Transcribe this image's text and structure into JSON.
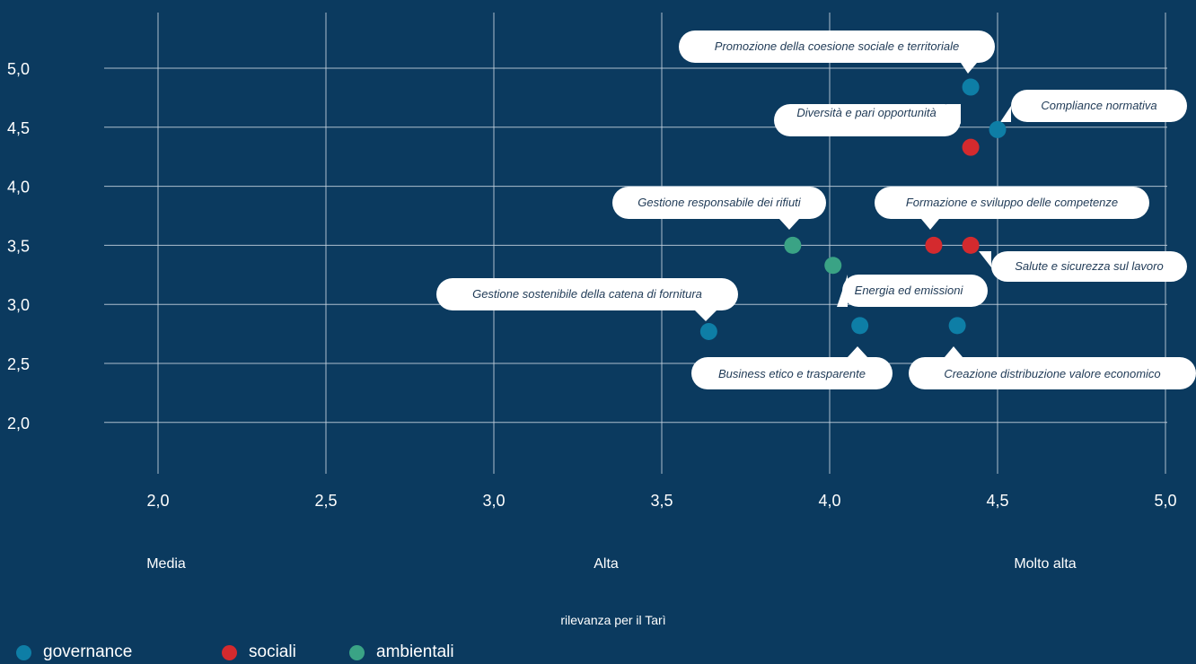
{
  "colors": {
    "background": "#0b3a5f",
    "grid": "#c9d6e2",
    "governance": "#0e7ea6",
    "sociali": "#d42a2e",
    "ambientali": "#3aa385",
    "callout_bg": "#ffffff",
    "callout_text": "#1f3a56"
  },
  "x_buckets": [
    "Media",
    "Alta",
    "Molto alta"
  ],
  "x_title": "rilevanza per il Tarì",
  "legend": [
    {
      "key": "governance",
      "label": "governance"
    },
    {
      "key": "sociali",
      "label": "sociali"
    },
    {
      "key": "ambientali",
      "label": "ambientali"
    }
  ],
  "chart_data": {
    "type": "scatter",
    "title": "",
    "xlabel": "rilevanza per il Tarì",
    "ylabel": "",
    "xlim": [
      1.85,
      5.0
    ],
    "ylim": [
      1.6,
      5.5
    ],
    "xticks": [
      2.0,
      2.5,
      3.0,
      3.5,
      4.0,
      4.5,
      5.0
    ],
    "xtick_labels": [
      "2,0",
      "2,5",
      "3,0",
      "3,5",
      "4,0",
      "4,5",
      "5,0"
    ],
    "yticks": [
      2.0,
      2.5,
      3.0,
      3.5,
      4.0,
      4.5,
      5.0
    ],
    "ytick_labels": [
      "2,0",
      "2,5",
      "3,0",
      "3,5",
      "4,0",
      "4,5",
      "5,0"
    ],
    "grid": true,
    "legend_position": "bottom-left",
    "series": [
      {
        "name": "governance",
        "points": [
          {
            "x": 4.42,
            "y": 4.84,
            "label": "Promozione della coesione sociale e territoriale"
          },
          {
            "x": 4.5,
            "y": 4.48,
            "label": "Compliance normativa"
          },
          {
            "x": 4.09,
            "y": 2.82,
            "label": "Business etico e trasparente"
          },
          {
            "x": 4.38,
            "y": 2.82,
            "label": "Creazione distribuzione valore economico"
          },
          {
            "x": 3.64,
            "y": 2.77,
            "label": "Gestione sostenibile della catena di fornitura"
          }
        ]
      },
      {
        "name": "sociali",
        "points": [
          {
            "x": 4.42,
            "y": 4.33,
            "label": "Diversità e pari opportunità"
          },
          {
            "x": 4.31,
            "y": 3.5,
            "label": "Formazione e sviluppo delle competenze"
          },
          {
            "x": 4.42,
            "y": 3.5,
            "label": "Salute e sicurezza sul lavoro"
          }
        ]
      },
      {
        "name": "ambientali",
        "points": [
          {
            "x": 3.89,
            "y": 3.5,
            "label": "Gestione responsabile dei rifiuti"
          },
          {
            "x": 4.01,
            "y": 3.33,
            "label": "Energia ed emissioni"
          }
        ]
      }
    ]
  }
}
